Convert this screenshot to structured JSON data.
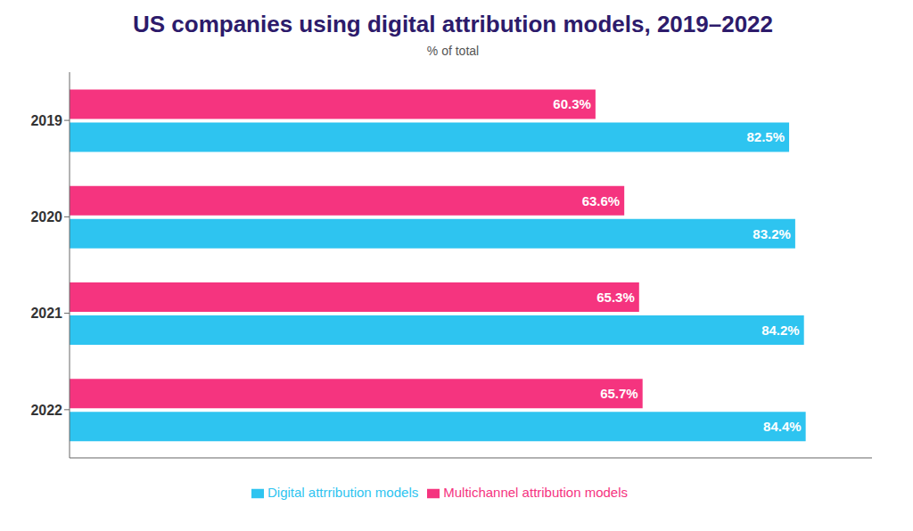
{
  "chart_data": {
    "type": "bar",
    "orientation": "horizontal",
    "title": "US companies using digital attribution models, 2019–2022",
    "subtitle": "% of total",
    "categories": [
      "2019",
      "2020",
      "2021",
      "2022"
    ],
    "series": [
      {
        "name": "Multichannel attribution models",
        "color": "#F5347F",
        "values": [
          60.3,
          63.6,
          65.3,
          65.7
        ],
        "value_labels": [
          "60.3%",
          "63.6%",
          "65.3%",
          "65.7%"
        ]
      },
      {
        "name": "Digital attrribution models",
        "color": "#2EC4F0",
        "values": [
          82.5,
          83.2,
          84.2,
          84.4
        ],
        "value_labels": [
          "82.5%",
          "83.2%",
          "84.2%",
          "84.4%"
        ]
      }
    ],
    "xlim": [
      0,
      92
    ],
    "xticks": [],
    "data_labels": true,
    "tick_labels": "y",
    "grid": false,
    "legend": "bottom"
  }
}
